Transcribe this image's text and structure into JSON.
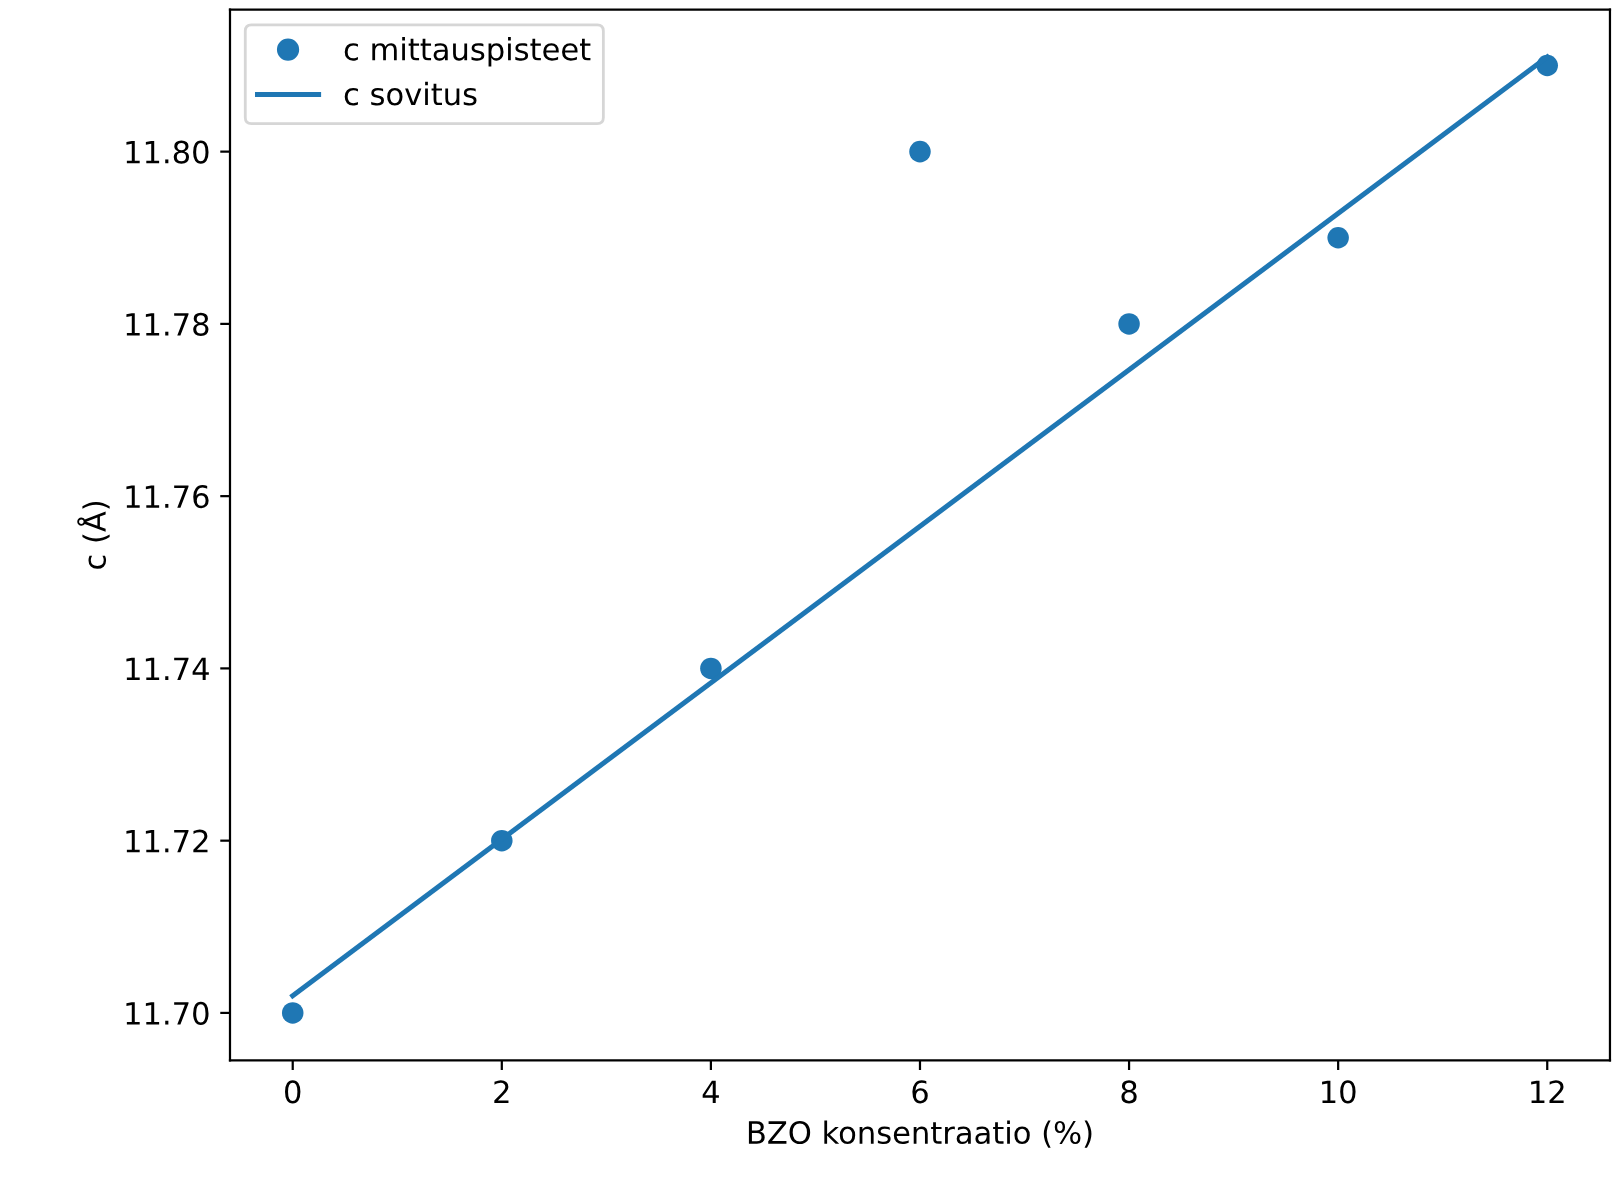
{
  "chart_data": {
    "type": "scatter",
    "xlabel": "BZO konsentraatio (%)",
    "ylabel": "c (Å)",
    "series": [
      {
        "name": "c mittauspisteet",
        "color": "#1f77b4",
        "marker": "circle",
        "x": [
          0,
          2,
          4,
          6,
          8,
          10,
          12
        ],
        "values": [
          11.7,
          11.72,
          11.74,
          11.8,
          11.78,
          11.79,
          11.81
        ]
      },
      {
        "name": "c sovitus",
        "type": "line",
        "color": "#1f77b4",
        "line_style": "solid",
        "x": [
          0,
          12
        ],
        "values": [
          11.702,
          11.811
        ]
      }
    ],
    "xlim": [
      -0.6,
      12.6
    ],
    "ylim": [
      11.6945,
      11.8165
    ],
    "xticks": [
      0,
      2,
      4,
      6,
      8,
      10,
      12
    ],
    "yticks": [
      {
        "value": 11.7,
        "label": "11.70"
      },
      {
        "value": 11.72,
        "label": "11.72"
      },
      {
        "value": 11.74,
        "label": "11.74"
      },
      {
        "value": 11.76,
        "label": "11.76"
      },
      {
        "value": 11.78,
        "label": "11.78"
      },
      {
        "value": 11.8,
        "label": "11.80"
      }
    ],
    "legend": "top left",
    "grid": false
  }
}
